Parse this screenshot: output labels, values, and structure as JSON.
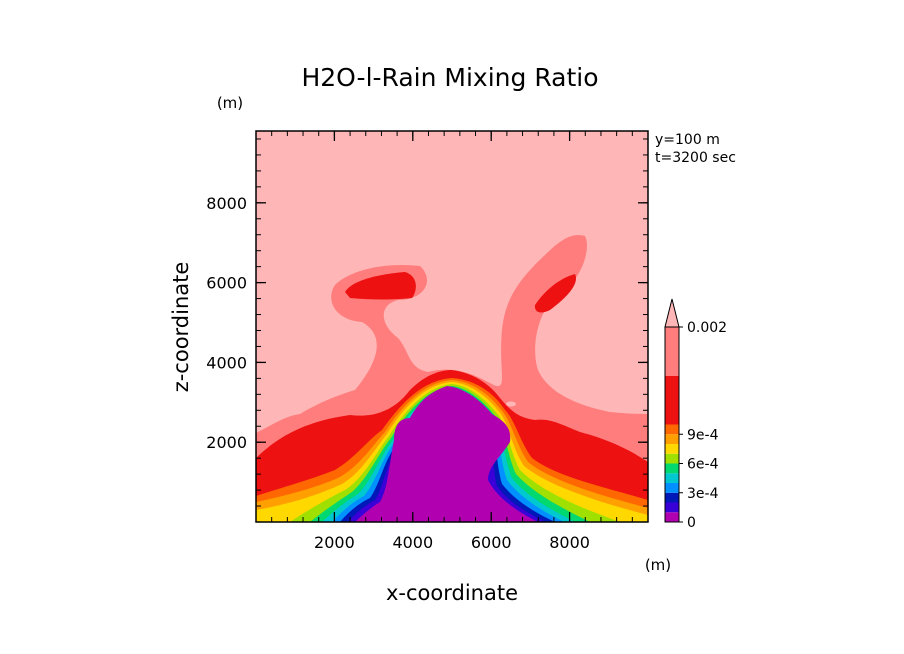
{
  "chart_data": {
    "type": "heatmap",
    "title": "H2O-l-Rain Mixing Ratio",
    "xlabel": "x-coordinate",
    "ylabel": "z-coordinate",
    "x_unit": "(m)",
    "y_unit": "(m)",
    "annotations": [
      "y=100 m",
      "t=3200 sec"
    ],
    "xlim": [
      0,
      10000
    ],
    "ylim": [
      0,
      9800
    ],
    "x_ticks": [
      2000,
      4000,
      6000,
      8000
    ],
    "y_ticks": [
      2000,
      4000,
      6000,
      8000
    ],
    "x_tick_labels": [
      "2000",
      "4000",
      "6000",
      "8000"
    ],
    "y_tick_labels": [
      "2000",
      "4000",
      "6000",
      "8000"
    ],
    "colorbar": {
      "min": 0,
      "max": 0.002,
      "extend": "max",
      "labels": [
        {
          "value": 0,
          "text": "0"
        },
        {
          "value": 0.0003,
          "text": "3e-4"
        },
        {
          "value": 0.0006,
          "text": "6e-4"
        },
        {
          "value": 0.0009,
          "text": "9e-4"
        },
        {
          "value": 0.002,
          "text": "0.002"
        }
      ],
      "levels": [
        {
          "from": 0,
          "to": 0.0001,
          "color": "#b000b0"
        },
        {
          "from": 0.0001,
          "to": 0.0002,
          "color": "#3a00d8"
        },
        {
          "from": 0.0002,
          "to": 0.0003,
          "color": "#0018b8"
        },
        {
          "from": 0.0003,
          "to": 0.0004,
          "color": "#0090ff"
        },
        {
          "from": 0.0004,
          "to": 0.0005,
          "color": "#00c8d0"
        },
        {
          "from": 0.0005,
          "to": 0.0006,
          "color": "#00d870"
        },
        {
          "from": 0.0006,
          "to": 0.0007,
          "color": "#a0e000"
        },
        {
          "from": 0.0007,
          "to": 0.0008,
          "color": "#ffd800"
        },
        {
          "from": 0.0008,
          "to": 0.0009,
          "color": "#ffa000"
        },
        {
          "from": 0.0009,
          "to": 0.001,
          "color": "#ff6800"
        },
        {
          "from": 0.001,
          "to": 0.0015,
          "color": "#ee1111"
        },
        {
          "from": 0.0015,
          "to": 0.002,
          "color": "#ff7d7d"
        },
        {
          "from": 0.002,
          "to": null,
          "color": "#ffb6b6"
        }
      ]
    }
  }
}
